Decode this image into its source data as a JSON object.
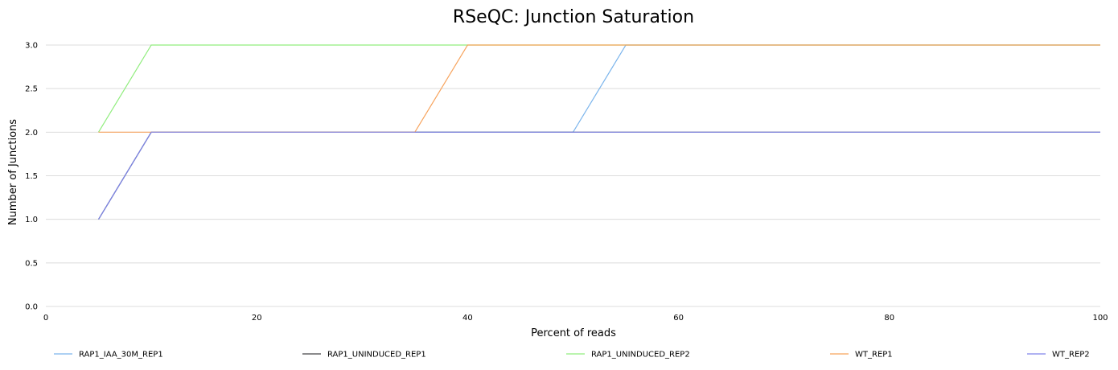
{
  "chart_data": {
    "type": "line",
    "title": "RSeQC: Junction Saturation",
    "xlabel": "Percent of reads",
    "ylabel": "Number of Junctions",
    "xlim": [
      0,
      100
    ],
    "ylim": [
      0,
      3.0
    ],
    "x_ticks": [
      "0",
      "20",
      "40",
      "60",
      "80",
      "100"
    ],
    "y_ticks": [
      "0.0",
      "0.5",
      "1.0",
      "1.5",
      "2.0",
      "2.5",
      "3.0"
    ],
    "grid": true,
    "legend_position": "bottom",
    "x": [
      5,
      10,
      15,
      20,
      25,
      30,
      35,
      40,
      45,
      50,
      55,
      60,
      65,
      70,
      75,
      80,
      85,
      90,
      95,
      100
    ],
    "series": [
      {
        "name": "RAP1_IAA_30M_REP1",
        "color": "#7cb5ec",
        "values": [
          1,
          2,
          2,
          2,
          2,
          2,
          2,
          2,
          2,
          2,
          3,
          3,
          3,
          3,
          3,
          3,
          3,
          3,
          3,
          3
        ]
      },
      {
        "name": "RAP1_UNINDUCED_REP1",
        "color": "#434348",
        "values": [
          1,
          2,
          2,
          2,
          2,
          2,
          2,
          2,
          2,
          2,
          2,
          2,
          2,
          2,
          2,
          2,
          2,
          2,
          2,
          2
        ]
      },
      {
        "name": "RAP1_UNINDUCED_REP2",
        "color": "#90ed7d",
        "values": [
          2,
          3,
          3,
          3,
          3,
          3,
          3,
          3,
          3,
          3,
          3,
          3,
          3,
          3,
          3,
          3,
          3,
          3,
          3,
          3
        ]
      },
      {
        "name": "WT_REP1",
        "color": "#f7a35c",
        "values": [
          2,
          2,
          2,
          2,
          2,
          2,
          2,
          3,
          3,
          3,
          3,
          3,
          3,
          3,
          3,
          3,
          3,
          3,
          3,
          3
        ]
      },
      {
        "name": "WT_REP2",
        "color": "#8085e9",
        "values": [
          1,
          2,
          2,
          2,
          2,
          2,
          2,
          2,
          2,
          2,
          2,
          2,
          2,
          2,
          2,
          2,
          2,
          2,
          2,
          2
        ]
      }
    ]
  }
}
